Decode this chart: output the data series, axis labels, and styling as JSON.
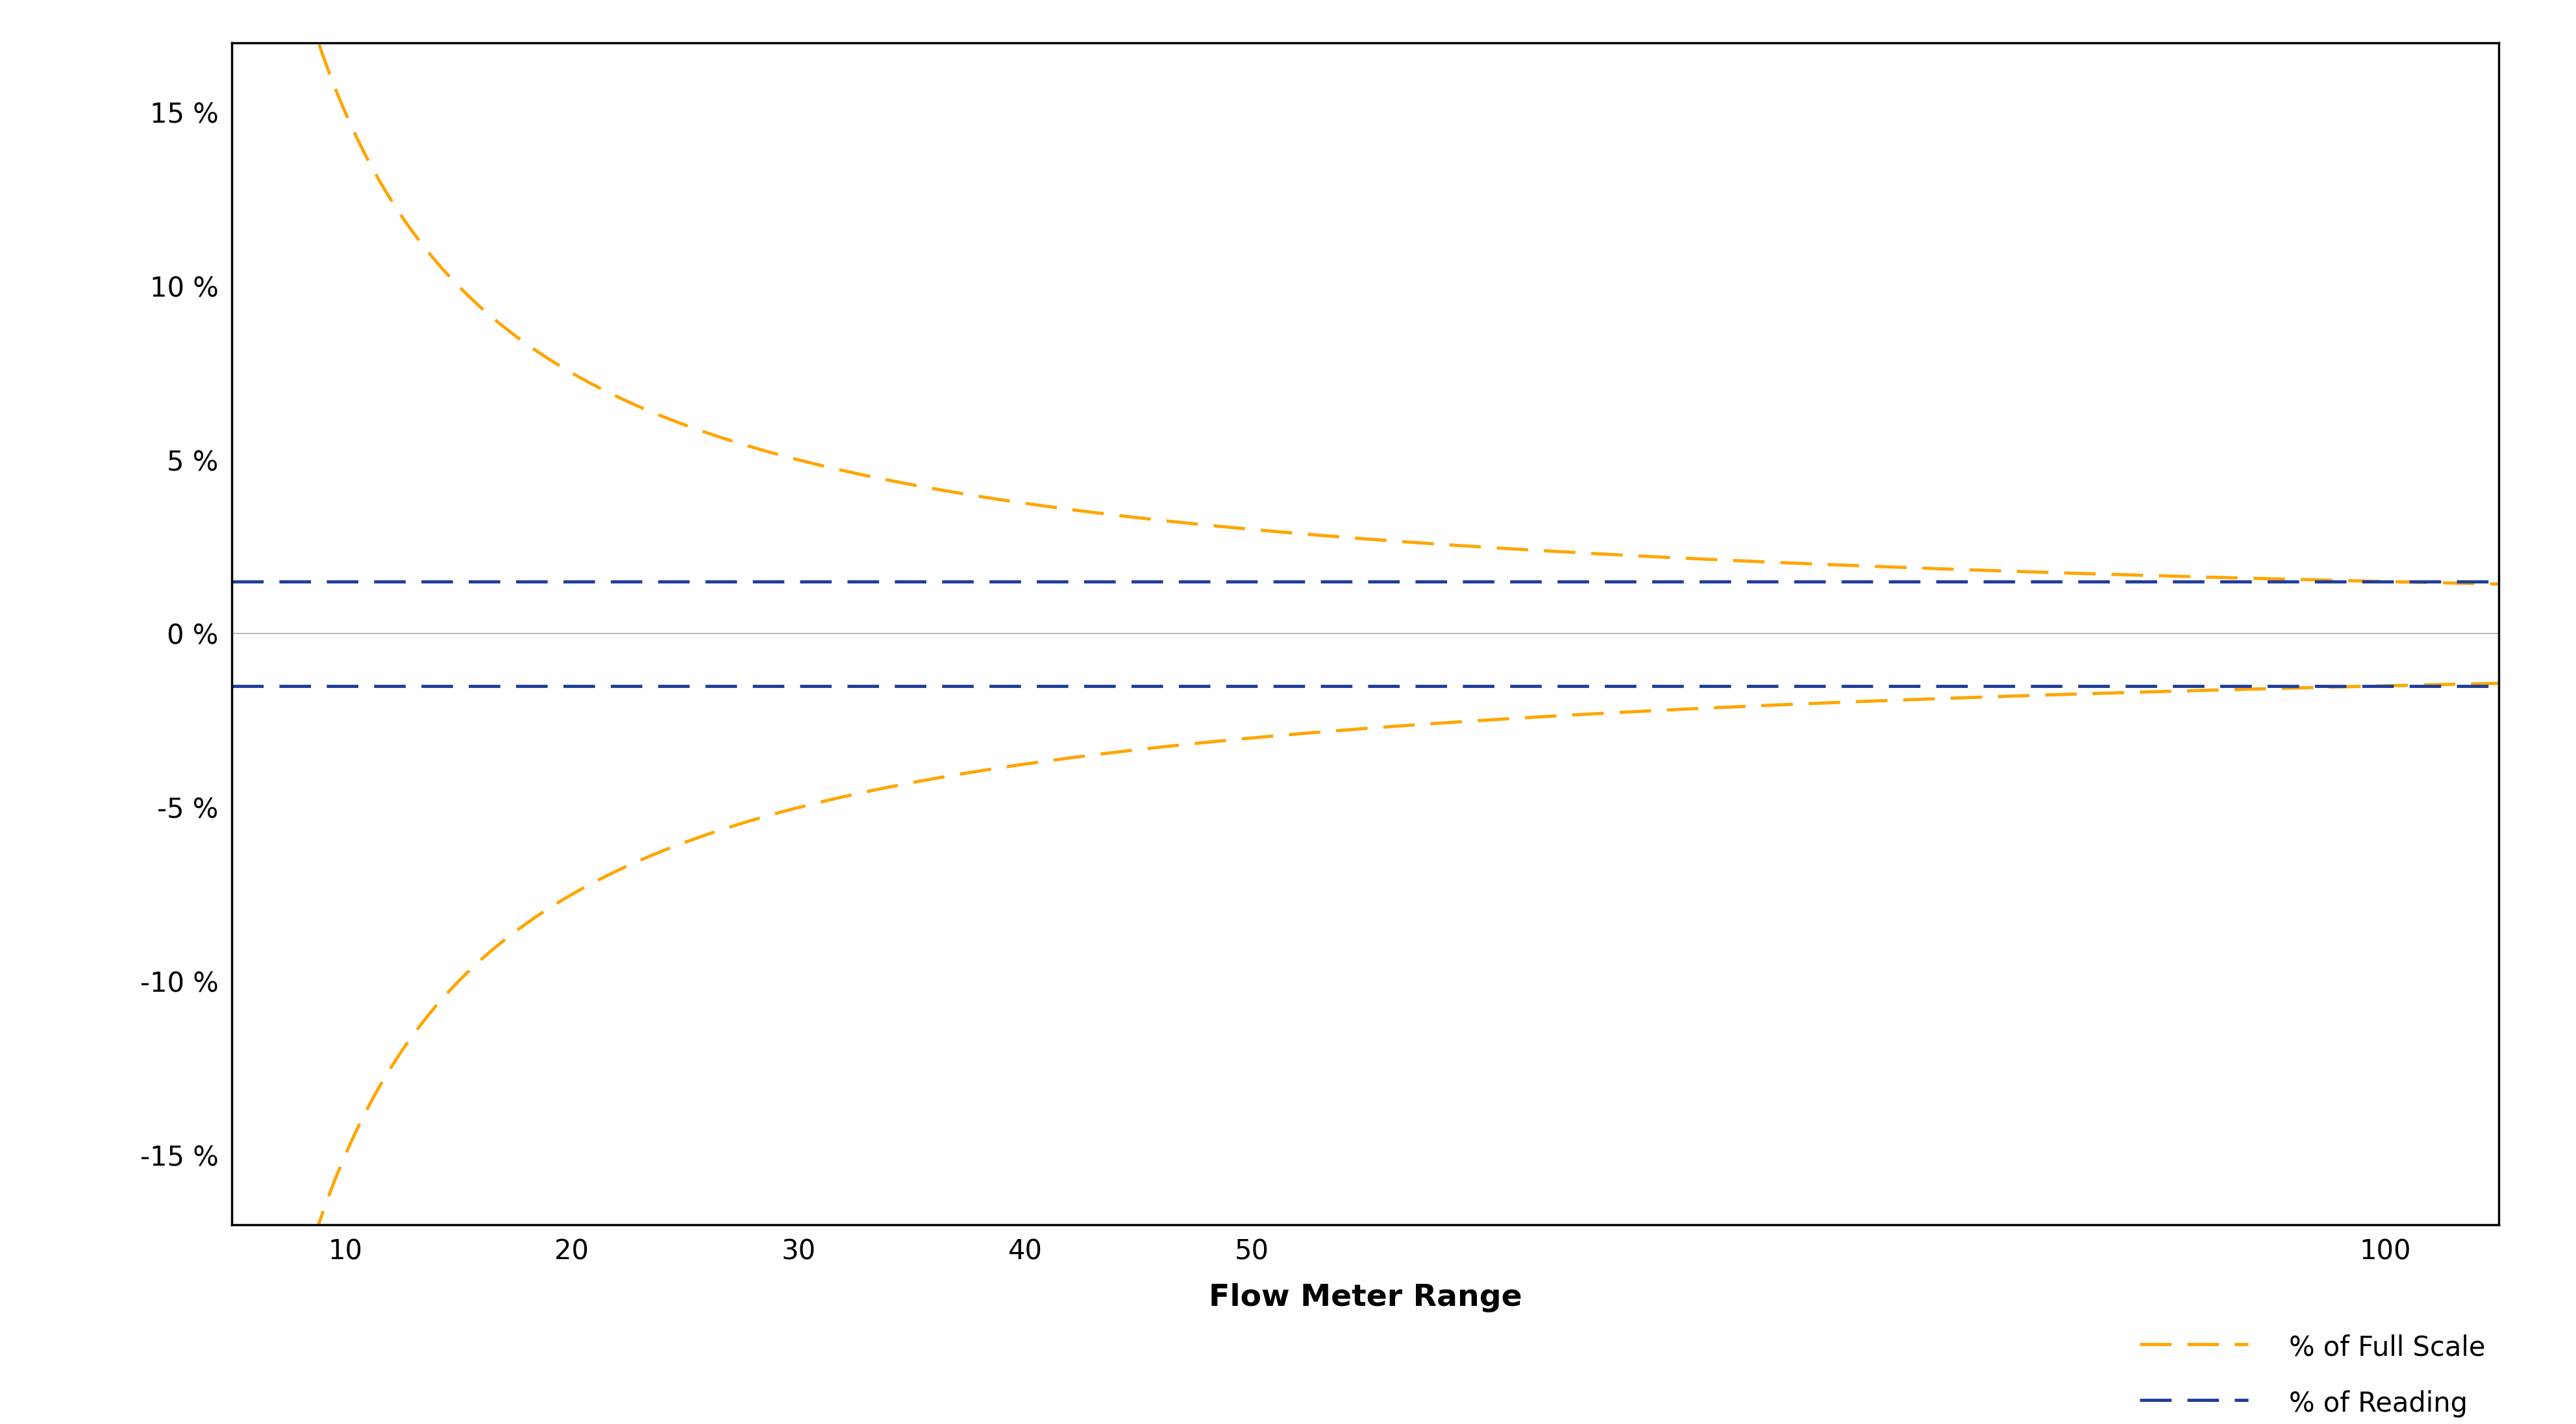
{
  "title": "",
  "xlabel": "Flow Meter Range",
  "ylabel": "",
  "xlim": [
    5,
    105
  ],
  "ylim": [
    -17,
    17
  ],
  "yticks": [
    -15,
    -10,
    -5,
    0,
    5,
    10,
    15
  ],
  "ytick_labels": [
    "-15 %",
    "-10 %",
    "-5 %",
    "0 %",
    "5 %",
    "10 %",
    "15 %"
  ],
  "xticks": [
    10,
    20,
    30,
    40,
    50,
    100
  ],
  "xtick_labels": [
    "10",
    "20",
    "30",
    "40",
    "50",
    "100"
  ],
  "reading_pct": 1.5,
  "fs_constant": 150,
  "blue_color": "#1F3D99",
  "orange_color": "#FFA500",
  "gray_color": "#BBBBBB",
  "line_width": 3.5,
  "legend_labels": [
    "% of Reading",
    "% of Full Scale"
  ],
  "background_color": "#FFFFFF",
  "tick_fontsize": 30,
  "xlabel_fontsize": 34,
  "legend_fontsize": 30
}
